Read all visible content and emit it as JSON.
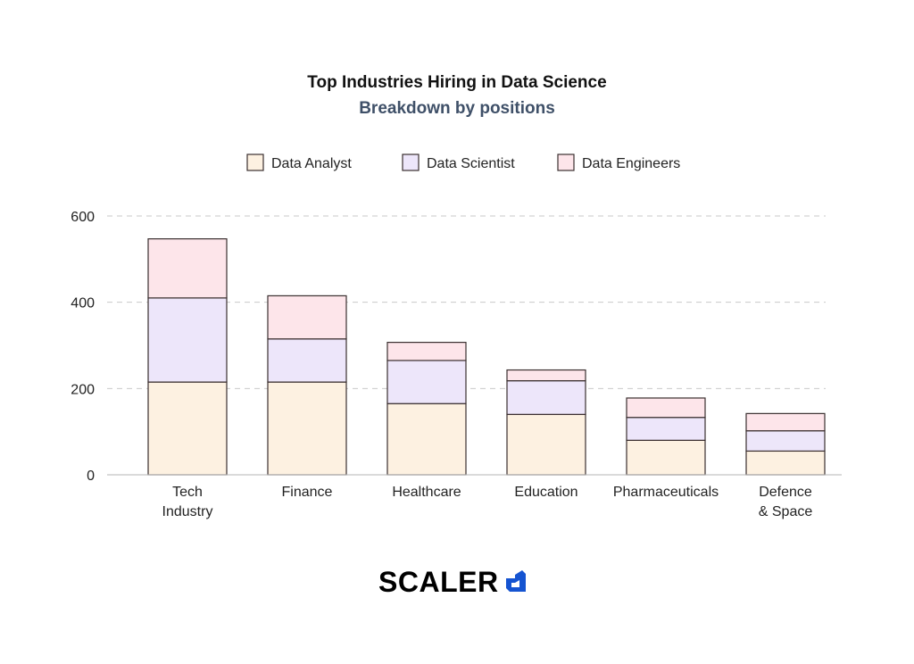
{
  "chart_data": {
    "type": "bar",
    "stacked": true,
    "title": "Top Industries Hiring in Data Science",
    "subtitle": "Breakdown by positions",
    "categories": [
      [
        "Tech",
        "Industry"
      ],
      [
        "Finance"
      ],
      [
        "Healthcare"
      ],
      [
        "Education"
      ],
      [
        "Pharmaceuticals"
      ],
      [
        "Defence",
        "& Space"
      ]
    ],
    "series": [
      {
        "name": "Data Analyst",
        "color": "#fdf1e1",
        "values": [
          215,
          215,
          165,
          140,
          80,
          55
        ]
      },
      {
        "name": "Data Scientist",
        "color": "#ede6fa",
        "values": [
          195,
          100,
          100,
          78,
          53,
          47
        ]
      },
      {
        "name": "Data Engineers",
        "color": "#fde5ea",
        "values": [
          137,
          100,
          42,
          25,
          45,
          40
        ]
      }
    ],
    "yticks": [
      0,
      200,
      400,
      600
    ],
    "ylim": [
      0,
      600
    ],
    "grid": true,
    "legend_position": "top-center",
    "bar_outline_color": "#3a2f2f"
  },
  "brand": {
    "name": "SCALER",
    "accent_color": "#1554d1"
  }
}
